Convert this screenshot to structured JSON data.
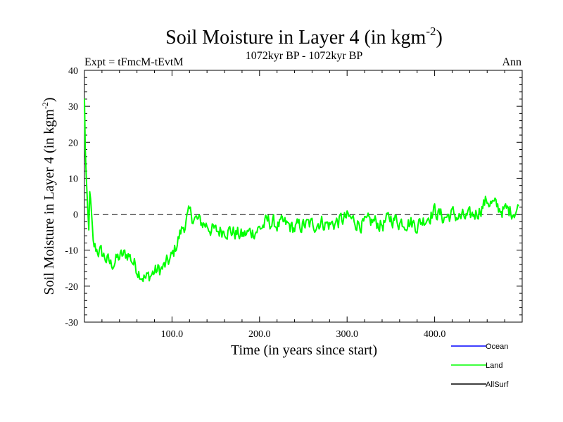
{
  "chart_data": {
    "type": "line",
    "title_main": "Soil Moisture in Layer 4 (in kgm",
    "title_sup": "-2",
    "title_end": ")",
    "subtitle_left": "Expt = tFmcM-tEvtM",
    "subtitle_center": "1072kyr BP - 1072kyr BP",
    "subtitle_right": "Ann",
    "xlabel": "Time (in years since start)",
    "ylabel_main": "Soil Moisture in Layer 4 (in kgm",
    "ylabel_sup": "-2",
    "ylabel_end": ")",
    "xlim": [
      0,
      500
    ],
    "ylim": [
      -30,
      40
    ],
    "x_ticks": [
      100,
      200,
      300,
      400
    ],
    "x_tick_labels": [
      "100.0",
      "200.0",
      "300.0",
      "400.0"
    ],
    "y_ticks": [
      -30,
      -20,
      -10,
      0,
      10,
      20,
      30,
      40
    ],
    "y_tick_labels": [
      "-30",
      "-20",
      "-10",
      "0",
      "10",
      "20",
      "30",
      "40"
    ],
    "reference_line": 0,
    "legend": [
      {
        "name": "Ocean",
        "color": "#0000ff"
      },
      {
        "name": "Land",
        "color": "#00ff00"
      },
      {
        "name": "AllSurf",
        "color": "#000000"
      }
    ],
    "series": [
      {
        "name": "Land",
        "color": "#00ff00",
        "x_step": 10,
        "keypoints": [
          32,
          -9,
          -11,
          -14,
          -12,
          -11,
          -15,
          -18,
          -16,
          -15,
          -12,
          -5,
          0,
          -2,
          -3,
          -5,
          -4,
          -5,
          -6,
          -5,
          -4,
          -2,
          -3,
          -3,
          -4,
          -3,
          -3,
          -2,
          -3,
          -2,
          -1,
          -2,
          -3,
          -2,
          -3,
          -1,
          -2,
          -2,
          -3,
          -1,
          1,
          -1,
          0,
          -1,
          -1,
          1,
          4,
          2,
          1,
          1,
          2
        ]
      }
    ]
  }
}
